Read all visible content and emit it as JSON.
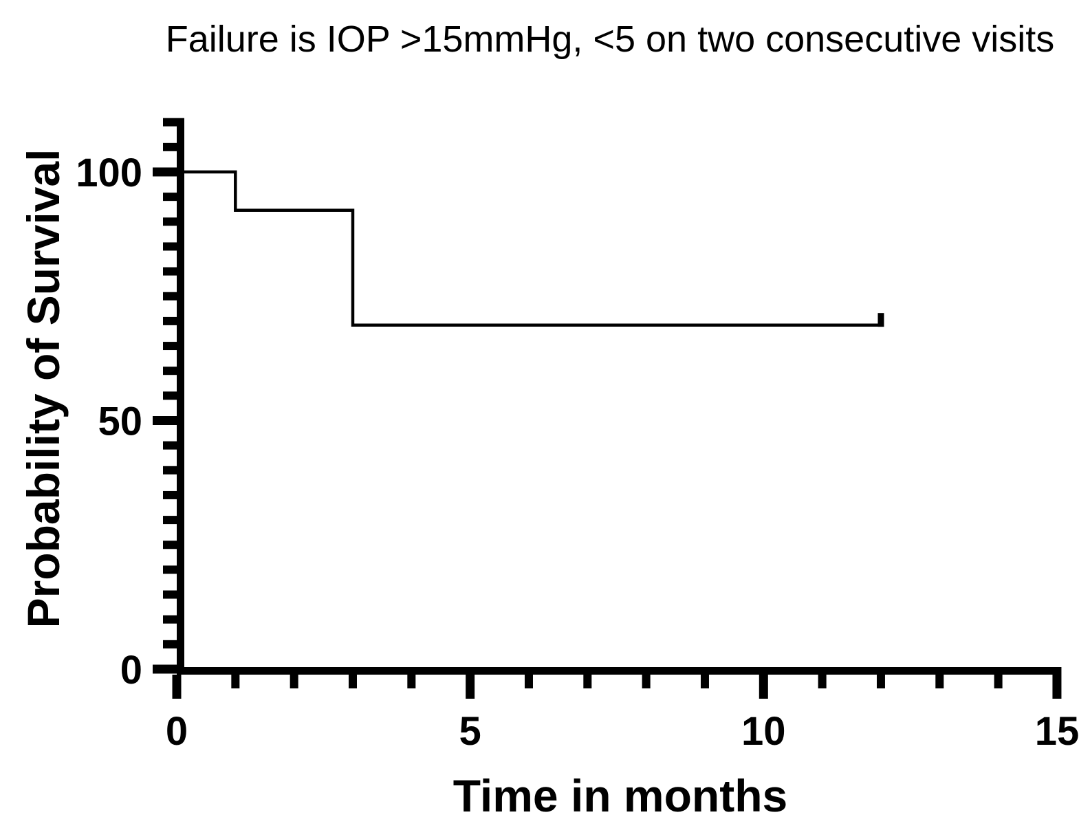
{
  "chart_data": {
    "type": "line",
    "subtype": "kaplan-meier-survival-step",
    "title": "Failure is IOP >15mmHg, <5 on two consecutive visits",
    "xlabel": "Time in months",
    "ylabel": "Probability of Survival",
    "xlim": [
      0,
      15
    ],
    "ylim": [
      0,
      100
    ],
    "grid": false,
    "legend_position": "none",
    "background_color": "#ffffff",
    "line_color": "#000000",
    "axis_color": "#000000",
    "x_ticks": [
      {
        "value": 0,
        "label": "0"
      },
      {
        "value": 5,
        "label": "5"
      },
      {
        "value": 10,
        "label": "10"
      },
      {
        "value": 15,
        "label": "15"
      }
    ],
    "x_minor_tick_interval": 1,
    "y_ticks": [
      {
        "value": 0,
        "label": "0"
      },
      {
        "value": 50,
        "label": "50"
      },
      {
        "value": 100,
        "label": "100"
      }
    ],
    "y_minor_tick_interval": 5,
    "series": [
      {
        "name": "Survival",
        "step_points": [
          [
            0,
            100
          ],
          [
            1,
            100
          ],
          [
            1,
            92.3
          ],
          [
            3,
            92.3
          ],
          [
            3,
            69.2
          ],
          [
            12,
            69.2
          ]
        ],
        "drops": [
          {
            "time": 1,
            "survival_after_percent": 92.3
          },
          {
            "time": 3,
            "survival_after_percent": 69.2
          }
        ],
        "censor_marks": [
          {
            "x": 12,
            "y": 69.2
          }
        ]
      }
    ]
  }
}
